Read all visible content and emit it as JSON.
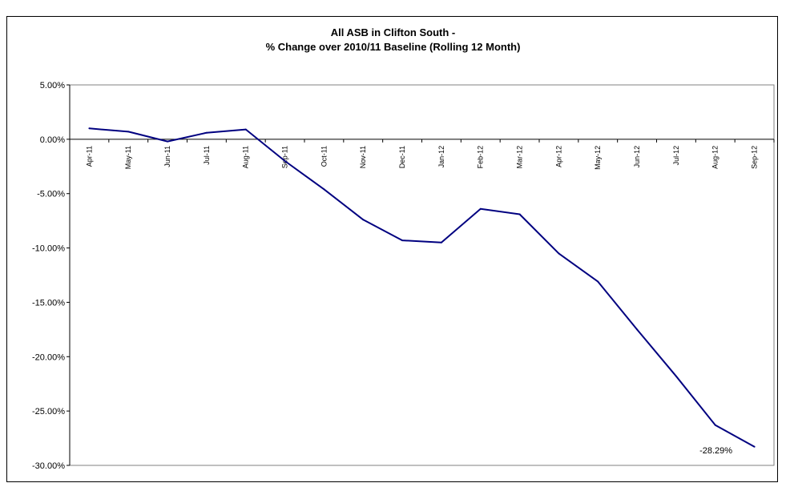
{
  "chart_data": {
    "type": "line",
    "title_line1": "All ASB in Clifton South -",
    "title_line2": "% Change over 2010/11 Baseline (Rolling 12 Month)",
    "xlabel": "",
    "ylabel": "",
    "categories": [
      "Apr-11",
      "May-11",
      "Jun-11",
      "Jul-11",
      "Aug-11",
      "Sep-11",
      "Oct-11",
      "Nov-11",
      "Dec-11",
      "Jan-12",
      "Feb-12",
      "Mar-12",
      "Apr-12",
      "May-12",
      "Jun-12",
      "Jul-12",
      "Aug-12",
      "Sep-12"
    ],
    "series": [
      {
        "values": [
          1.0,
          0.7,
          -0.2,
          0.6,
          0.9,
          -2.0,
          -4.6,
          -7.4,
          -9.3,
          -9.5,
          -6.4,
          -6.9,
          -10.5,
          -13.1,
          -17.5,
          -21.8,
          -26.3,
          -28.29
        ]
      }
    ],
    "ylim": [
      -30,
      5
    ],
    "yticks": [
      "5.00%",
      "0.00%",
      "-5.00%",
      "-10.00%",
      "-15.00%",
      "-20.00%",
      "-25.00%",
      "-30.00%"
    ],
    "ytick_values": [
      5,
      0,
      -5,
      -10,
      -15,
      -20,
      -25,
      -30
    ],
    "data_label": "-28.29%",
    "grid": false,
    "line_color": "#000080"
  }
}
